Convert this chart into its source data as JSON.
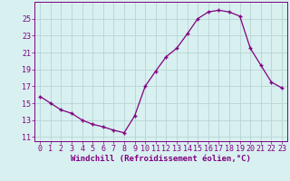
{
  "x": [
    0,
    1,
    2,
    3,
    4,
    5,
    6,
    7,
    8,
    9,
    10,
    11,
    12,
    13,
    14,
    15,
    16,
    17,
    18,
    19,
    20,
    21,
    22,
    23
  ],
  "y": [
    15.8,
    15.0,
    14.2,
    13.8,
    13.0,
    12.5,
    12.2,
    11.8,
    11.5,
    13.5,
    17.0,
    18.8,
    20.5,
    21.5,
    23.2,
    25.0,
    25.8,
    26.0,
    25.8,
    25.3,
    21.5,
    19.5,
    17.5,
    16.8
  ],
  "line_color": "#800080",
  "marker": "+",
  "bg_color": "#d8f0f0",
  "grid_color": "#b8d4d4",
  "xlabel": "Windchill (Refroidissement éolien,°C)",
  "xlabel_fontsize": 6.5,
  "tick_fontsize": 6.0,
  "ylim": [
    10.5,
    27
  ],
  "yticks": [
    11,
    13,
    15,
    17,
    19,
    21,
    23,
    25
  ],
  "xticks": [
    0,
    1,
    2,
    3,
    4,
    5,
    6,
    7,
    8,
    9,
    10,
    11,
    12,
    13,
    14,
    15,
    16,
    17,
    18,
    19,
    20,
    21,
    22,
    23
  ]
}
